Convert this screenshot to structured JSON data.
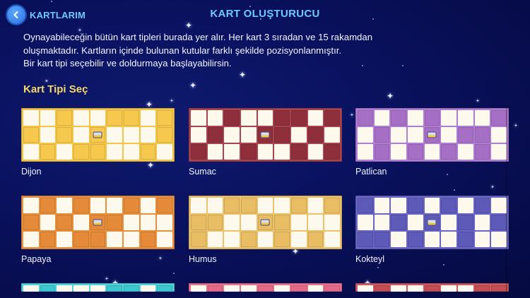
{
  "header": {
    "back_label": "KARTLARIM",
    "title": "KART OLUŞTURUCU"
  },
  "description": {
    "line1": "Oynayabileceğin bütün kart tipleri burada yer alır. Her kart 3 sıradan ve 15 rakamdan",
    "line2": "oluşmaktadır. Kartların içinde bulunan kutular farklı şekilde pozisyonlanmıştır.",
    "line3": "Bir kart tipi seçebilir ve doldurmaya başlayabilirsin."
  },
  "section": {
    "title": "Kart Tipi Seç"
  },
  "colors": {
    "accent_blue": "#6fc8ff",
    "section_yellow": "#f6d96a",
    "background": "#0a1260",
    "cell_white": "#fdf9ec"
  },
  "cards": [
    {
      "name": "Dijon",
      "frame": "#f2c546",
      "fill": "#f6c94e",
      "pattern": [
        "WWFWWFFWF",
        "FWFWLWWWF",
        "WFWFFWWFW"
      ]
    },
    {
      "name": "Sumac",
      "frame": "#a8444f",
      "fill": "#8f2f3b",
      "pattern": [
        "WWFWWFFWF",
        "WFWWLFWFW",
        "FWWFWWFWF"
      ]
    },
    {
      "name": "Patlican",
      "frame": "#b07ed0",
      "fill": "#a56fc6",
      "pattern": [
        "FWFWFWWWF",
        "WFWWLWFFW",
        "WFWFWFWFW"
      ]
    },
    {
      "name": "Papaya",
      "frame": "#e7913f",
      "fill": "#e58a38",
      "pattern": [
        "WFWFWWFWF",
        "FWFWLFWWW",
        "WFWFFWWFW"
      ]
    },
    {
      "name": "Humus",
      "frame": "#ecc26c",
      "fill": "#e8bd63",
      "pattern": [
        "WWFFWWFWF",
        "FFWWLFWWW",
        "FWWFWFWFW"
      ]
    },
    {
      "name": "Kokteyl",
      "frame": "#6a66c4",
      "fill": "#5e5ab9",
      "pattern": [
        "FWWFWFWFW",
        "WWFWLWFWF",
        "FFWFWWFWW"
      ]
    },
    {
      "name": "",
      "frame": "#4fd3d9",
      "fill": "#3cc6cd",
      "pattern": [
        "WFWWWFFWF"
      ]
    },
    {
      "name": "",
      "frame": "#e9738f",
      "fill": "#e26a86",
      "pattern": [
        "WFWWFWFWF"
      ]
    },
    {
      "name": "",
      "frame": "#cd5a5e",
      "fill": "#c24d52",
      "pattern": [
        "WFWWFWWFF"
      ]
    }
  ]
}
